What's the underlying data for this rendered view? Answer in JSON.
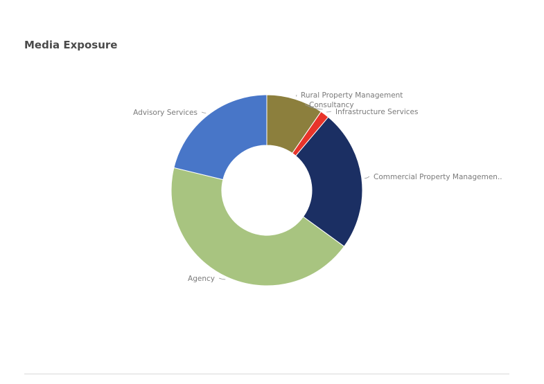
{
  "chart_data": {
    "type": "pie",
    "title": "Media Exposure",
    "donut": true,
    "slices": [
      {
        "label": "Rural Property Management",
        "value": 0.096,
        "color": "#8c7f3d"
      },
      {
        "label": "Consultancy",
        "value": 0.0001,
        "color": "#c8b86a"
      },
      {
        "label": "Infrastructure Services",
        "value": 0.015,
        "color": "#e8342a"
      },
      {
        "label": "Commercial Property Managemen..",
        "value": 0.239,
        "color": "#1b2f63"
      },
      {
        "label": "Agency",
        "value": 0.438,
        "color": "#a8c480"
      },
      {
        "label": "Advisory Services",
        "value": 0.212,
        "color": "#4876c8"
      }
    ]
  }
}
